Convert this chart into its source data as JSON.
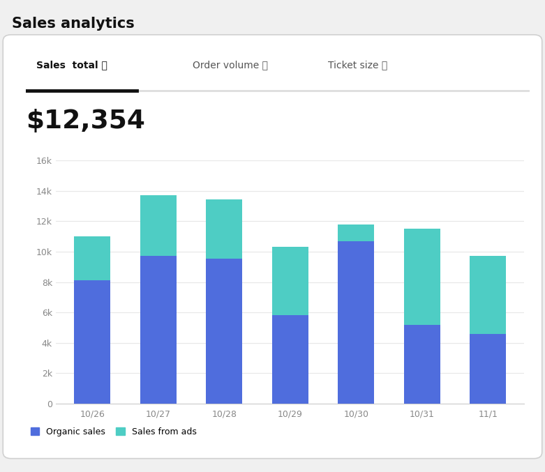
{
  "title": "Sales analytics",
  "subtitle_value": "$12,354",
  "tab_labels": [
    "Sales  total",
    "Order volume",
    "Ticket size"
  ],
  "categories": [
    "10/26",
    "10/27",
    "10/28",
    "10/29",
    "10/30",
    "10/31",
    "11/1"
  ],
  "organic_sales": [
    8100,
    9700,
    9550,
    5800,
    10700,
    5200,
    4600
  ],
  "sales_from_ads": [
    2900,
    4000,
    3900,
    4500,
    1100,
    6300,
    5100
  ],
  "color_organic": "#4f6ddd",
  "color_ads": "#4ecdc4",
  "ylim": [
    0,
    16000
  ],
  "yticks": [
    0,
    2000,
    4000,
    6000,
    8000,
    10000,
    12000,
    14000,
    16000
  ],
  "legend_organic": "Organic sales",
  "legend_ads": "Sales from ads",
  "bg_color": "#ffffff",
  "card_bg": "#ffffff",
  "card_border": "#d0d0d0",
  "outer_bg": "#f0f0f0",
  "grid_color": "#e8e8e8",
  "axis_label_color": "#888888",
  "title_color": "#111111",
  "value_color": "#111111",
  "tab_underline_active": "#111111",
  "tab_underline_inactive": "#dddddd",
  "info_icon": "ⓘ"
}
